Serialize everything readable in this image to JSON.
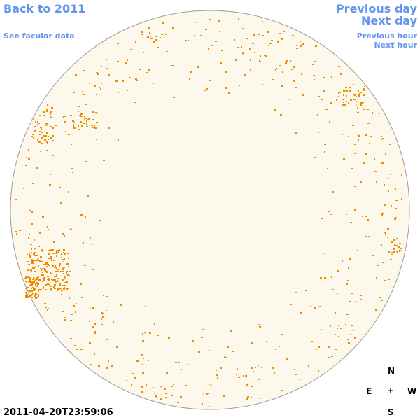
{
  "nav": {
    "back_year": "Back to 2011",
    "facular_data": "See facular data",
    "previous_day": "Previous day",
    "next_day": "Next day",
    "previous_hour": "Previous hour",
    "next_hour": "Next hour"
  },
  "compass": {
    "north": "N",
    "east": "E",
    "center": "+",
    "west": "W",
    "south": "S"
  },
  "timestamp": "2011-04-20T23:59:06"
}
